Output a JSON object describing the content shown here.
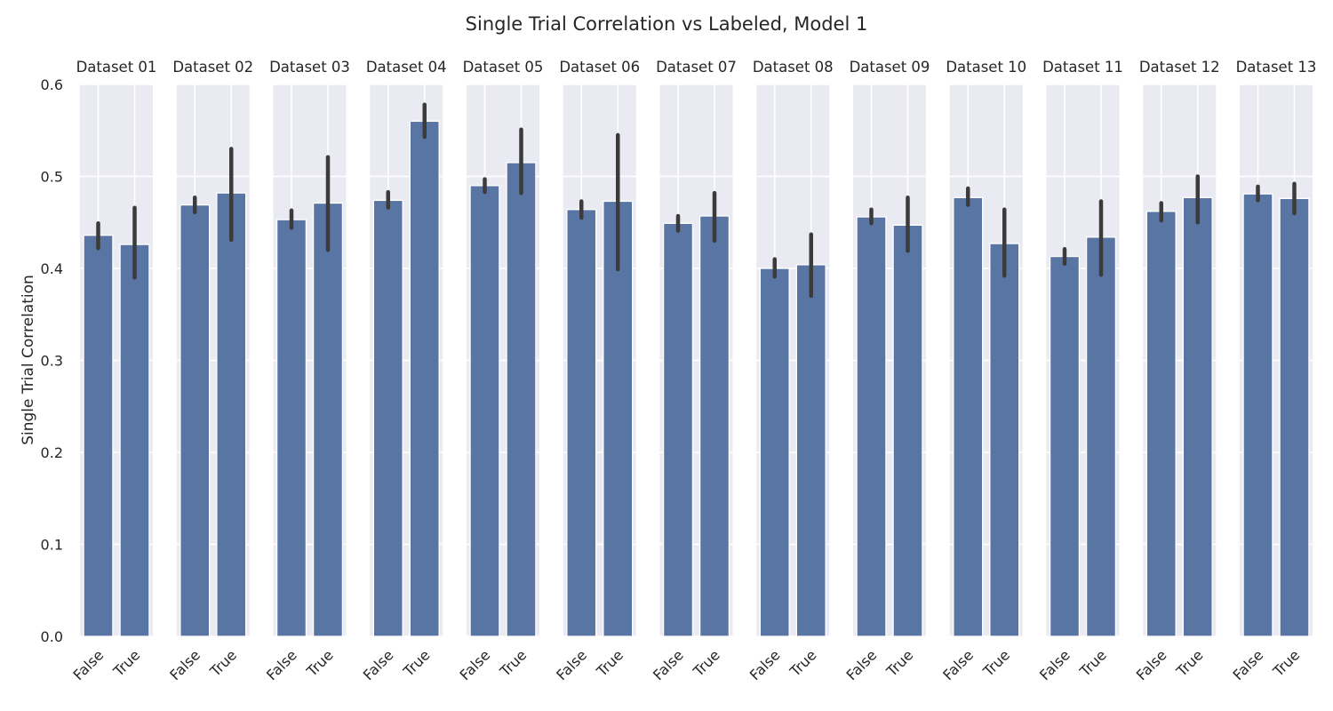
{
  "chart_data": {
    "type": "bar",
    "title": "Single Trial Correlation vs Labeled, Model 1",
    "ylabel": "Single Trial Correlation",
    "xlabel": "",
    "ylim": [
      0,
      0.6
    ],
    "yticks": [
      "0.0",
      "0.1",
      "0.2",
      "0.3",
      "0.4",
      "0.5",
      "0.6"
    ],
    "ytick_values": [
      0,
      0.1,
      0.2,
      0.3,
      0.4,
      0.5,
      0.6
    ],
    "categories": [
      "False",
      "True"
    ],
    "grid": true,
    "bar_color": "#5975a4",
    "errorbar_color": "#3b3b3b",
    "panel_background": "#eaeaf2",
    "panels": [
      {
        "name": "Dataset 01",
        "values": [
          0.436,
          0.426
        ],
        "ci": [
          [
            0.422,
            0.449
          ],
          [
            0.39,
            0.466
          ]
        ]
      },
      {
        "name": "Dataset 02",
        "values": [
          0.469,
          0.482
        ],
        "ci": [
          [
            0.461,
            0.477
          ],
          [
            0.431,
            0.53
          ]
        ]
      },
      {
        "name": "Dataset 03",
        "values": [
          0.453,
          0.471
        ],
        "ci": [
          [
            0.444,
            0.463
          ],
          [
            0.42,
            0.521
          ]
        ]
      },
      {
        "name": "Dataset 04",
        "values": [
          0.474,
          0.56
        ],
        "ci": [
          [
            0.466,
            0.483
          ],
          [
            0.543,
            0.578
          ]
        ]
      },
      {
        "name": "Dataset 05",
        "values": [
          0.49,
          0.515
        ],
        "ci": [
          [
            0.483,
            0.497
          ],
          [
            0.482,
            0.551
          ]
        ]
      },
      {
        "name": "Dataset 06",
        "values": [
          0.464,
          0.473
        ],
        "ci": [
          [
            0.455,
            0.473
          ],
          [
            0.399,
            0.545
          ]
        ]
      },
      {
        "name": "Dataset 07",
        "values": [
          0.449,
          0.457
        ],
        "ci": [
          [
            0.441,
            0.457
          ],
          [
            0.43,
            0.482
          ]
        ]
      },
      {
        "name": "Dataset 08",
        "values": [
          0.4,
          0.404
        ],
        "ci": [
          [
            0.391,
            0.41
          ],
          [
            0.37,
            0.437
          ]
        ]
      },
      {
        "name": "Dataset 09",
        "values": [
          0.456,
          0.447
        ],
        "ci": [
          [
            0.449,
            0.464
          ],
          [
            0.419,
            0.477
          ]
        ]
      },
      {
        "name": "Dataset 10",
        "values": [
          0.477,
          0.427
        ],
        "ci": [
          [
            0.469,
            0.487
          ],
          [
            0.392,
            0.464
          ]
        ]
      },
      {
        "name": "Dataset 11",
        "values": [
          0.413,
          0.434
        ],
        "ci": [
          [
            0.405,
            0.421
          ],
          [
            0.393,
            0.473
          ]
        ]
      },
      {
        "name": "Dataset 12",
        "values": [
          0.462,
          0.477
        ],
        "ci": [
          [
            0.452,
            0.471
          ],
          [
            0.45,
            0.5
          ]
        ]
      },
      {
        "name": "Dataset 13",
        "values": [
          0.481,
          0.476
        ],
        "ci": [
          [
            0.474,
            0.489
          ],
          [
            0.46,
            0.492
          ]
        ]
      }
    ]
  }
}
